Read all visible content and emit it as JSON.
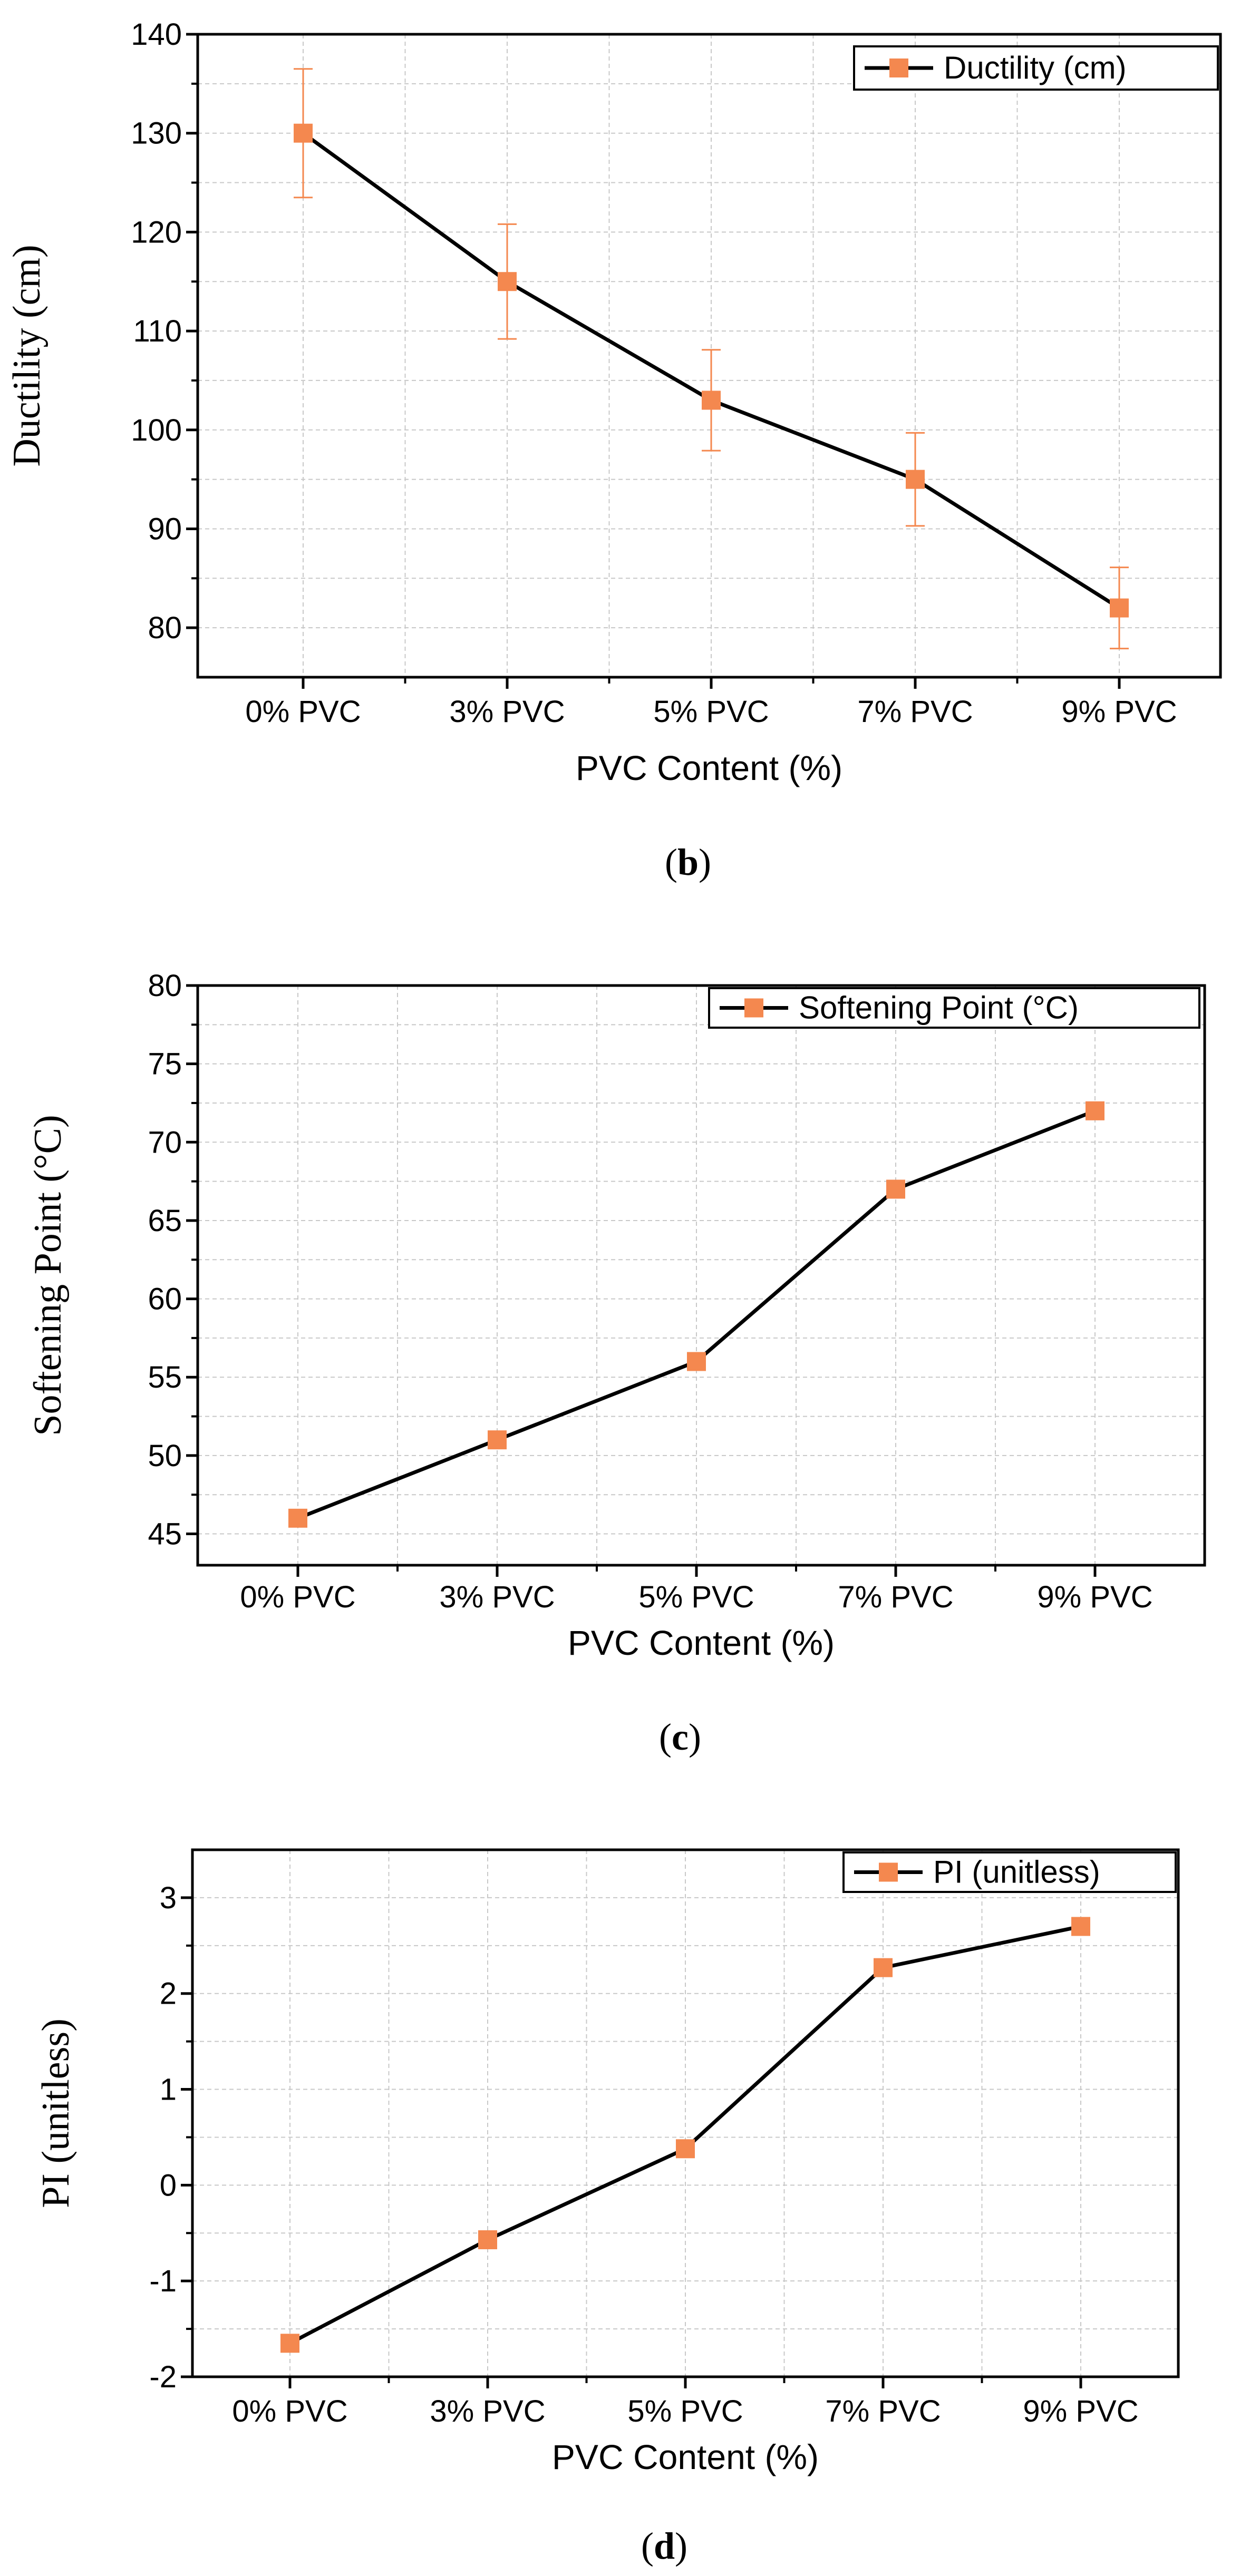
{
  "colors": {
    "marker": "#f4884f",
    "line": "#000000",
    "grid": "#c8c8c8",
    "axis": "#000000"
  },
  "chart_data": [
    {
      "type": "line",
      "caption_letter": "b",
      "categories": [
        "0% PVC",
        "3% PVC",
        "5% PVC",
        "7% PVC",
        "9% PVC"
      ],
      "series": [
        {
          "name": "Ductility (cm)",
          "values": [
            130,
            115,
            103,
            95,
            82
          ],
          "error": [
            6.5,
            5.8,
            5.1,
            4.7,
            4.1
          ]
        }
      ],
      "xlabel": "PVC Content (%)",
      "ylabel": "Ductility (cm)",
      "ylim": [
        75,
        140
      ],
      "yticks": [
        80,
        90,
        100,
        110,
        120,
        130,
        140
      ],
      "grid": true,
      "legend_position": "top-right"
    },
    {
      "type": "line",
      "caption_letter": "c",
      "categories": [
        "0% PVC",
        "3% PVC",
        "5% PVC",
        "7% PVC",
        "9% PVC"
      ],
      "series": [
        {
          "name": "Softening Point (°C)",
          "values": [
            46,
            51,
            56,
            67,
            72
          ]
        }
      ],
      "xlabel": "PVC Content (%)",
      "ylabel": "Softening Point (°C)",
      "ylim": [
        43,
        80
      ],
      "yticks": [
        45,
        50,
        55,
        60,
        65,
        70,
        75,
        80
      ],
      "grid": true,
      "legend_position": "top-right"
    },
    {
      "type": "line",
      "caption_letter": "d",
      "categories": [
        "0% PVC",
        "3% PVC",
        "5% PVC",
        "7% PVC",
        "9% PVC"
      ],
      "series": [
        {
          "name": "PI (unitless)",
          "values": [
            -1.65,
            -0.57,
            0.38,
            2.27,
            2.7
          ]
        }
      ],
      "xlabel": "PVC Content (%)",
      "ylabel": "PI (unitless)",
      "ylim": [
        -2,
        3.5
      ],
      "yticks": [
        -2,
        -1,
        0,
        1,
        2,
        3
      ],
      "grid": true,
      "legend_position": "top-right"
    }
  ]
}
